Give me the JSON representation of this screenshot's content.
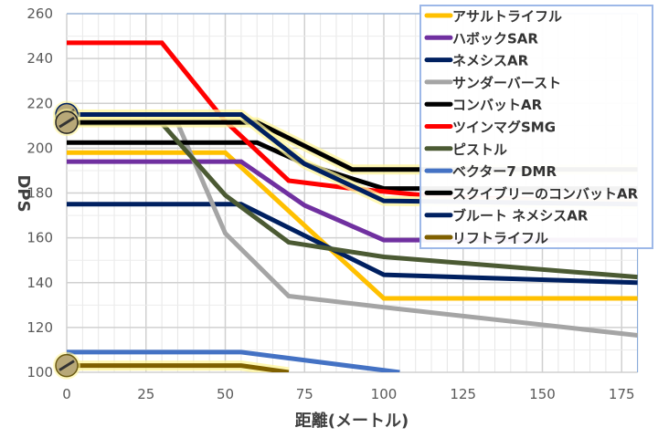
{
  "chart_data": {
    "type": "line",
    "title": "",
    "xlabel": "距離(メートル)",
    "ylabel": "DPS",
    "xlim": [
      0,
      180
    ],
    "ylim": [
      100,
      260
    ],
    "xticks": [
      0,
      25,
      50,
      75,
      100,
      125,
      150,
      175
    ],
    "yticks": [
      100,
      120,
      140,
      160,
      180,
      200,
      220,
      240,
      260
    ],
    "grid": true,
    "legend_position": "top-right",
    "series": [
      {
        "name": "アサルトライフル",
        "color": "#FFC000",
        "x": [
          0,
          50,
          100,
          180
        ],
        "y": [
          198,
          198,
          133,
          133
        ]
      },
      {
        "name": "ハボックSAR",
        "color": "#7030A0",
        "x": [
          0,
          55,
          75,
          100,
          180
        ],
        "y": [
          194,
          194,
          174.5,
          159,
          159
        ]
      },
      {
        "name": "ネメシスAR",
        "color": "#002060",
        "x": [
          0,
          55,
          100,
          180
        ],
        "y": [
          175,
          175,
          143.5,
          140
        ]
      },
      {
        "name": "サンダーバースト",
        "color": "#A5A5A5",
        "x": [
          0,
          35,
          50,
          70,
          100,
          180
        ],
        "y": [
          211,
          211,
          162,
          134,
          129,
          116.5
        ]
      },
      {
        "name": "コンバットAR",
        "color": "#000000",
        "x": [
          0,
          60,
          75,
          100,
          180
        ],
        "y": [
          202.5,
          202.5,
          193,
          182,
          182
        ]
      },
      {
        "name": "ツインマグSMG",
        "color": "#FF0000",
        "x": [
          0,
          30,
          50,
          70,
          90,
          120,
          180
        ],
        "y": [
          247,
          247,
          212,
          185.5,
          182,
          178,
          176
        ]
      },
      {
        "name": "ピストル",
        "color": "#4B5A33",
        "x": [
          0,
          30,
          50,
          70,
          100,
          180
        ],
        "y": [
          211,
          211,
          179,
          158,
          151.5,
          142.5
        ]
      },
      {
        "name": "ベクター7 DMR",
        "color": "#4472C4",
        "x": [
          0,
          55,
          105
        ],
        "y": [
          109,
          109,
          100
        ]
      },
      {
        "name": "スクイブリーのコンバットAR",
        "color": "#000000",
        "glow": true,
        "x": [
          0,
          60,
          90,
          180
        ],
        "y": [
          211.5,
          211.5,
          190.5,
          190.5
        ]
      },
      {
        "name": "ブルート ネメシスAR",
        "color": "#002060",
        "glow": true,
        "x": [
          0,
          55,
          75,
          100,
          180
        ],
        "y": [
          215,
          215,
          193,
          176.5,
          175
        ]
      },
      {
        "name": "リフトライフル",
        "color": "#7F6000",
        "glow": true,
        "x": [
          0,
          55,
          70
        ],
        "y": [
          103,
          103,
          100
        ]
      }
    ]
  }
}
